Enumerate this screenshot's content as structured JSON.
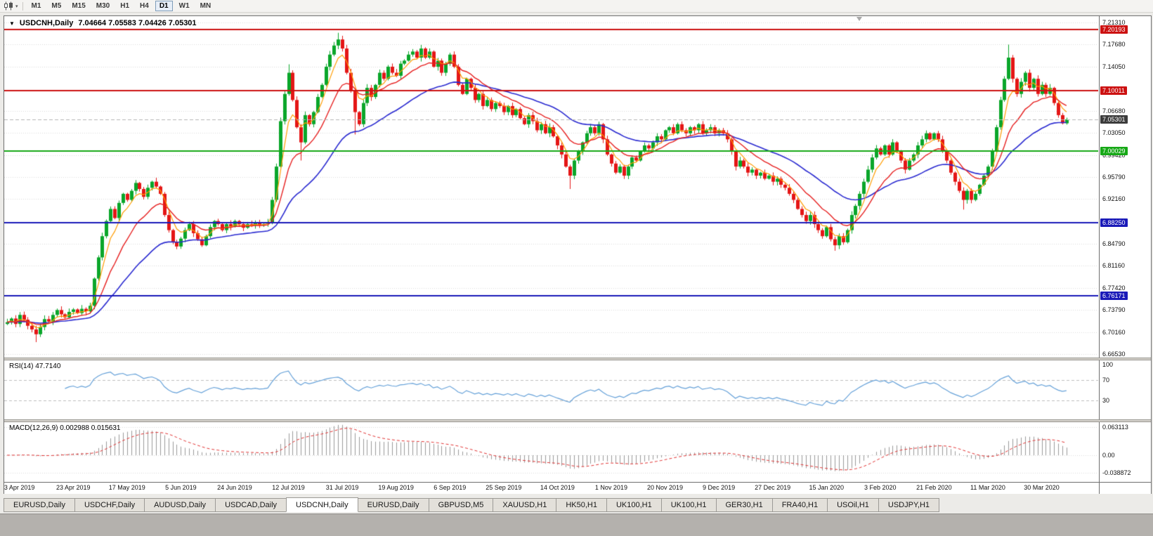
{
  "toolbar": {
    "timeframes": [
      "M1",
      "M5",
      "M15",
      "M30",
      "H1",
      "H4",
      "D1",
      "W1",
      "MN"
    ],
    "active_timeframe": "D1"
  },
  "window": {
    "title_symbol": "USDCNH,Daily",
    "title_ohlc": "7.04664 7.05583 7.04426 7.05301"
  },
  "price_axis": {
    "ticks": [
      "7.21310",
      "7.17680",
      "7.14050",
      "7.06680",
      "7.03050",
      "6.99420",
      "6.95790",
      "6.92160",
      "6.84790",
      "6.81160",
      "6.77420",
      "6.73790",
      "6.70160",
      "6.66530"
    ],
    "badges": [
      {
        "value": "7.20193",
        "color": "#cc1111"
      },
      {
        "value": "7.10011",
        "color": "#cc1111"
      },
      {
        "value": "7.05301",
        "color": "#3c3c3c"
      },
      {
        "value": "7.00029",
        "color": "#16a816"
      },
      {
        "value": "6.88250",
        "color": "#1a1ab8"
      },
      {
        "value": "6.76171",
        "color": "#1a1ab8"
      }
    ]
  },
  "chart_data": {
    "type": "candlestick",
    "title": "USDCNH, Daily",
    "ylim": [
      6.6595,
      7.2235
    ],
    "x_labels": [
      "3 Apr 2019",
      "23 Apr 2019",
      "17 May 2019",
      "5 Jun 2019",
      "24 Jun 2019",
      "12 Jul 2019",
      "31 Jul 2019",
      "19 Aug 2019",
      "6 Sep 2019",
      "25 Sep 2019",
      "14 Oct 2019",
      "1 Nov 2019",
      "20 Nov 2019",
      "9 Dec 2019",
      "27 Dec 2019",
      "15 Jan 2020",
      "3 Feb 2020",
      "21 Feb 2020",
      "11 Mar 2020",
      "30 Mar 2020"
    ],
    "first_open": 6.715,
    "closes": [
      6.718,
      6.724,
      6.715,
      6.73,
      6.722,
      6.712,
      6.706,
      6.698,
      6.71,
      6.723,
      6.719,
      6.73,
      6.738,
      6.731,
      6.726,
      6.735,
      6.739,
      6.733,
      6.74,
      6.736,
      6.745,
      6.79,
      6.825,
      6.86,
      6.885,
      6.905,
      6.89,
      6.915,
      6.93,
      6.92,
      6.935,
      6.948,
      6.938,
      6.925,
      6.94,
      6.95,
      6.942,
      6.93,
      6.895,
      6.87,
      6.85,
      6.843,
      6.856,
      6.87,
      6.88,
      6.865,
      6.855,
      6.845,
      6.86,
      6.875,
      6.885,
      6.88,
      6.87,
      6.88,
      6.876,
      6.885,
      6.88,
      6.874,
      6.88,
      6.878,
      6.882,
      6.878,
      6.88,
      6.883,
      6.92,
      6.975,
      7.05,
      7.095,
      7.13,
      7.085,
      7.04,
      7.015,
      7.06,
      7.045,
      7.065,
      7.09,
      7.11,
      7.14,
      7.16,
      7.175,
      7.185,
      7.17,
      7.13,
      7.1,
      7.065,
      7.045,
      7.08,
      7.105,
      7.09,
      7.11,
      7.13,
      7.12,
      7.14,
      7.13,
      7.125,
      7.145,
      7.15,
      7.16,
      7.165,
      7.155,
      7.17,
      7.155,
      7.165,
      7.14,
      7.15,
      7.13,
      7.145,
      7.16,
      7.14,
      7.11,
      7.095,
      7.12,
      7.105,
      7.085,
      7.095,
      7.075,
      7.085,
      7.07,
      7.08,
      7.075,
      7.065,
      7.075,
      7.06,
      7.07,
      7.055,
      7.045,
      7.06,
      7.05,
      7.035,
      7.045,
      7.03,
      7.04,
      7.025,
      7.01,
      6.995,
      6.975,
      6.96,
      6.985,
      7.0,
      7.015,
      7.03,
      7.04,
      7.03,
      7.045,
      7.02,
      6.995,
      6.98,
      6.965,
      6.975,
      6.96,
      6.975,
      6.99,
      6.985,
      7.0,
      7.01,
      7.005,
      7.015,
      7.025,
      7.02,
      7.035,
      7.04,
      7.03,
      7.045,
      7.035,
      7.03,
      7.04,
      7.035,
      7.045,
      7.03,
      7.035,
      7.04,
      7.03,
      7.035,
      7.03,
      7.02,
      7.0,
      6.975,
      6.985,
      6.975,
      6.965,
      6.97,
      6.96,
      6.965,
      6.955,
      6.96,
      6.95,
      6.955,
      6.945,
      6.94,
      6.93,
      6.92,
      6.905,
      6.895,
      6.885,
      6.895,
      6.88,
      6.87,
      6.86,
      6.875,
      6.855,
      6.845,
      6.86,
      6.85,
      6.87,
      6.895,
      6.91,
      6.93,
      6.95,
      6.97,
      6.99,
      7.005,
      6.995,
      7.01,
      6.995,
      7.015,
      7.0,
      6.985,
      6.97,
      6.985,
      6.995,
      7.01,
      7.02,
      7.03,
      7.02,
      7.03,
      7.02,
      7.0,
      6.985,
      6.965,
      6.95,
      6.935,
      6.92,
      6.935,
      6.92,
      6.93,
      6.945,
      6.96,
      6.975,
      7.0,
      7.04,
      7.085,
      7.12,
      7.155,
      7.12,
      7.095,
      7.115,
      7.13,
      7.105,
      7.12,
      7.095,
      7.11,
      7.095,
      7.105,
      7.08,
      7.06,
      7.0465,
      7.053
    ],
    "wick_overrides": {
      "7": {
        "low": 6.685
      },
      "68": {
        "high": 7.144
      },
      "71": {
        "low": 6.985
      },
      "80": {
        "high": 7.196
      },
      "84": {
        "low": 7.028
      },
      "136": {
        "low": 6.938
      },
      "200": {
        "low": 6.836
      },
      "231": {
        "low": 6.904
      },
      "242": {
        "high": 7.1765
      },
      "256": {
        "high": 7.05583,
        "low": 7.04426
      }
    },
    "horizontal_lines": [
      {
        "value": 7.20193,
        "color": "#cc1111"
      },
      {
        "value": 7.10011,
        "color": "#cc1111"
      },
      {
        "value": 7.00029,
        "color": "#16a816"
      },
      {
        "value": 6.8825,
        "color": "#1a1ab8"
      },
      {
        "value": 6.76171,
        "color": "#1a1ab8"
      }
    ],
    "current_price": 7.05301,
    "up_color": "#0aa62a",
    "down_color": "#e41616",
    "ma_lines": [
      {
        "period": 34,
        "color": "#2a2ad0",
        "width": 1.6
      },
      {
        "period": 5,
        "color": "#ff9c00",
        "width": 1.2
      },
      {
        "period": 13,
        "color": "#e62020",
        "width": 1.4
      }
    ]
  },
  "rsi": {
    "label": "RSI(14) 47.7140",
    "period": 14,
    "color": "#64a0d8",
    "levels": [
      70,
      30
    ],
    "ticks": [
      {
        "value": 100,
        "label": "100"
      },
      {
        "value": 70,
        "label": "70"
      },
      {
        "value": 30,
        "label": "30"
      }
    ]
  },
  "macd": {
    "label": "MACD(12,26,9) 0.002988 0.015631",
    "fast": 12,
    "slow": 26,
    "signal_period": 9,
    "hist_color": "#9a9a9a",
    "signal_color": "#e03030",
    "ticks": [
      {
        "value": 0.063113,
        "label": "0.063113"
      },
      {
        "value": 0,
        "label": "0.00"
      },
      {
        "value": -0.038872,
        "label": "-0.038872"
      }
    ]
  },
  "tabs": {
    "items": [
      "EURUSD,Daily",
      "USDCHF,Daily",
      "AUDUSD,Daily",
      "USDCAD,Daily",
      "USDCNH,Daily",
      "EURUSD,Daily",
      "GBPUSD,M5",
      "XAUUSD,H1",
      "HK50,H1",
      "UK100,H1",
      "UK100,H1",
      "GER30,H1",
      "FRA40,H1",
      "USOil,H1",
      "USDJPY,H1"
    ],
    "active_index": 4
  }
}
